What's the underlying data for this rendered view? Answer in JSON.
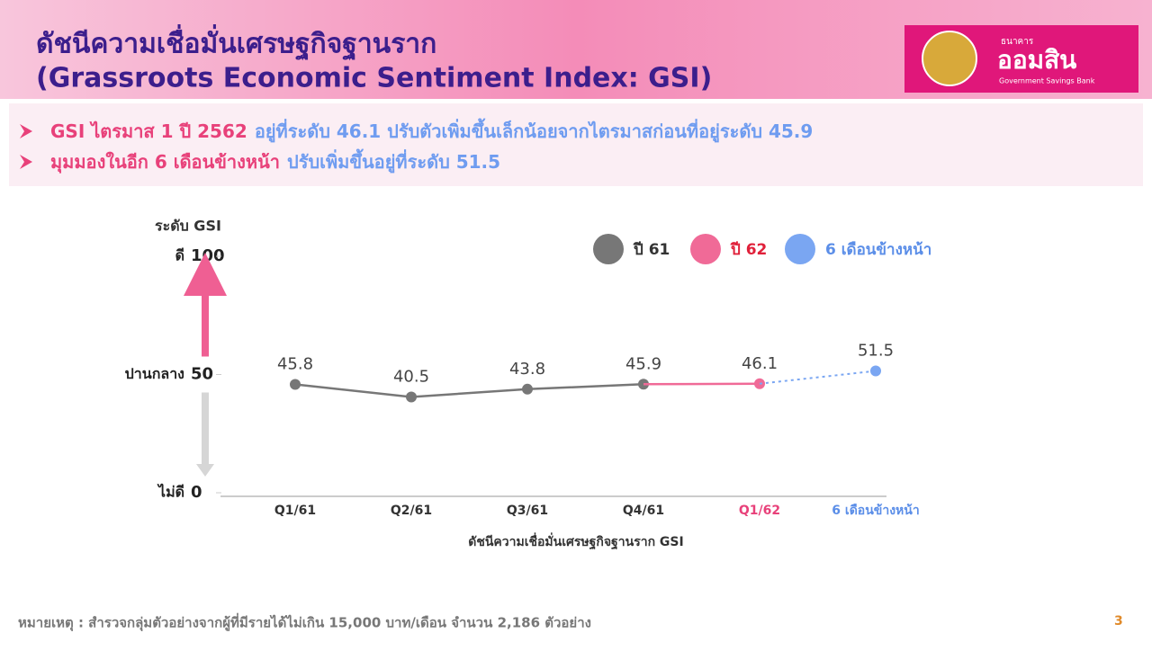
{
  "header": {
    "title_lines": [
      "ดัชนีความเชื่อมั่นเศรษฐกิจฐานราก",
      "(Grassroots Economic Sentiment Index: GSI)"
    ]
  },
  "logo": {
    "small": "ธนาคาร",
    "name": "ออมสิน",
    "english": "Government Savings Bank"
  },
  "bullets": [
    [
      {
        "text": "GSI ไตรมาส 1 ปี 2562",
        "color": "#e8417a"
      },
      {
        "text": "อยู่ที่ระดับ 46.1 ปรับตัวเพิ่มขึ้นเล็กน้อยจากไตรมาสก่อนที่อยู่ระดับ 45.9",
        "color": "#6f9cf0"
      }
    ],
    [
      {
        "text": "มุมมองในอีก 6 เดือนข้างหน้า",
        "color": "#e8417a"
      },
      {
        "text": "ปรับเพิ่มขึ้นอยู่ที่ระดับ 51.5",
        "color": "#6f9cf0"
      }
    ]
  ],
  "chart_data": {
    "type": "line",
    "y_title": "ระดับ GSI",
    "x_title": "ดัชนีความเชื่อมั่นเศรษฐกิจฐานราก GSI",
    "categories": [
      "Q1/61",
      "Q2/61",
      "Q3/61",
      "Q4/61",
      "Q1/62",
      "6 เดือนข้างหน้า"
    ],
    "category_colors": [
      "#333333",
      "#333333",
      "#333333",
      "#333333",
      "#e8417a",
      "#5b8ee8"
    ],
    "ylim": [
      0,
      100
    ],
    "yticks": [
      0,
      50,
      100
    ],
    "ytick_names": [
      "ไม่ดี",
      "ปานกลาง",
      "ดี"
    ],
    "series": [
      {
        "name": "ปี 61",
        "color": "#777777",
        "label_color": "#333333",
        "values": [
          45.8,
          40.5,
          43.8,
          45.9,
          null,
          null
        ]
      },
      {
        "name": "ปี 62",
        "color": "#f06a97",
        "label_color": "#e0203a",
        "values": [
          null,
          null,
          null,
          45.9,
          46.1,
          null
        ]
      },
      {
        "name": "6 เดือนข้างหน้า",
        "color": "#7aa6f2",
        "label_color": "#5b8ee8",
        "dashed": true,
        "values": [
          null,
          null,
          null,
          null,
          46.1,
          51.5
        ]
      }
    ]
  },
  "footnote": "หมายเหตุ : สำรวจกลุ่มตัวอย่างจากผู้ที่มีรายได้ไม่เกิน 15,000 บาท/เดือน จำนวน 2,186 ตัวอย่าง",
  "page_number": "3"
}
